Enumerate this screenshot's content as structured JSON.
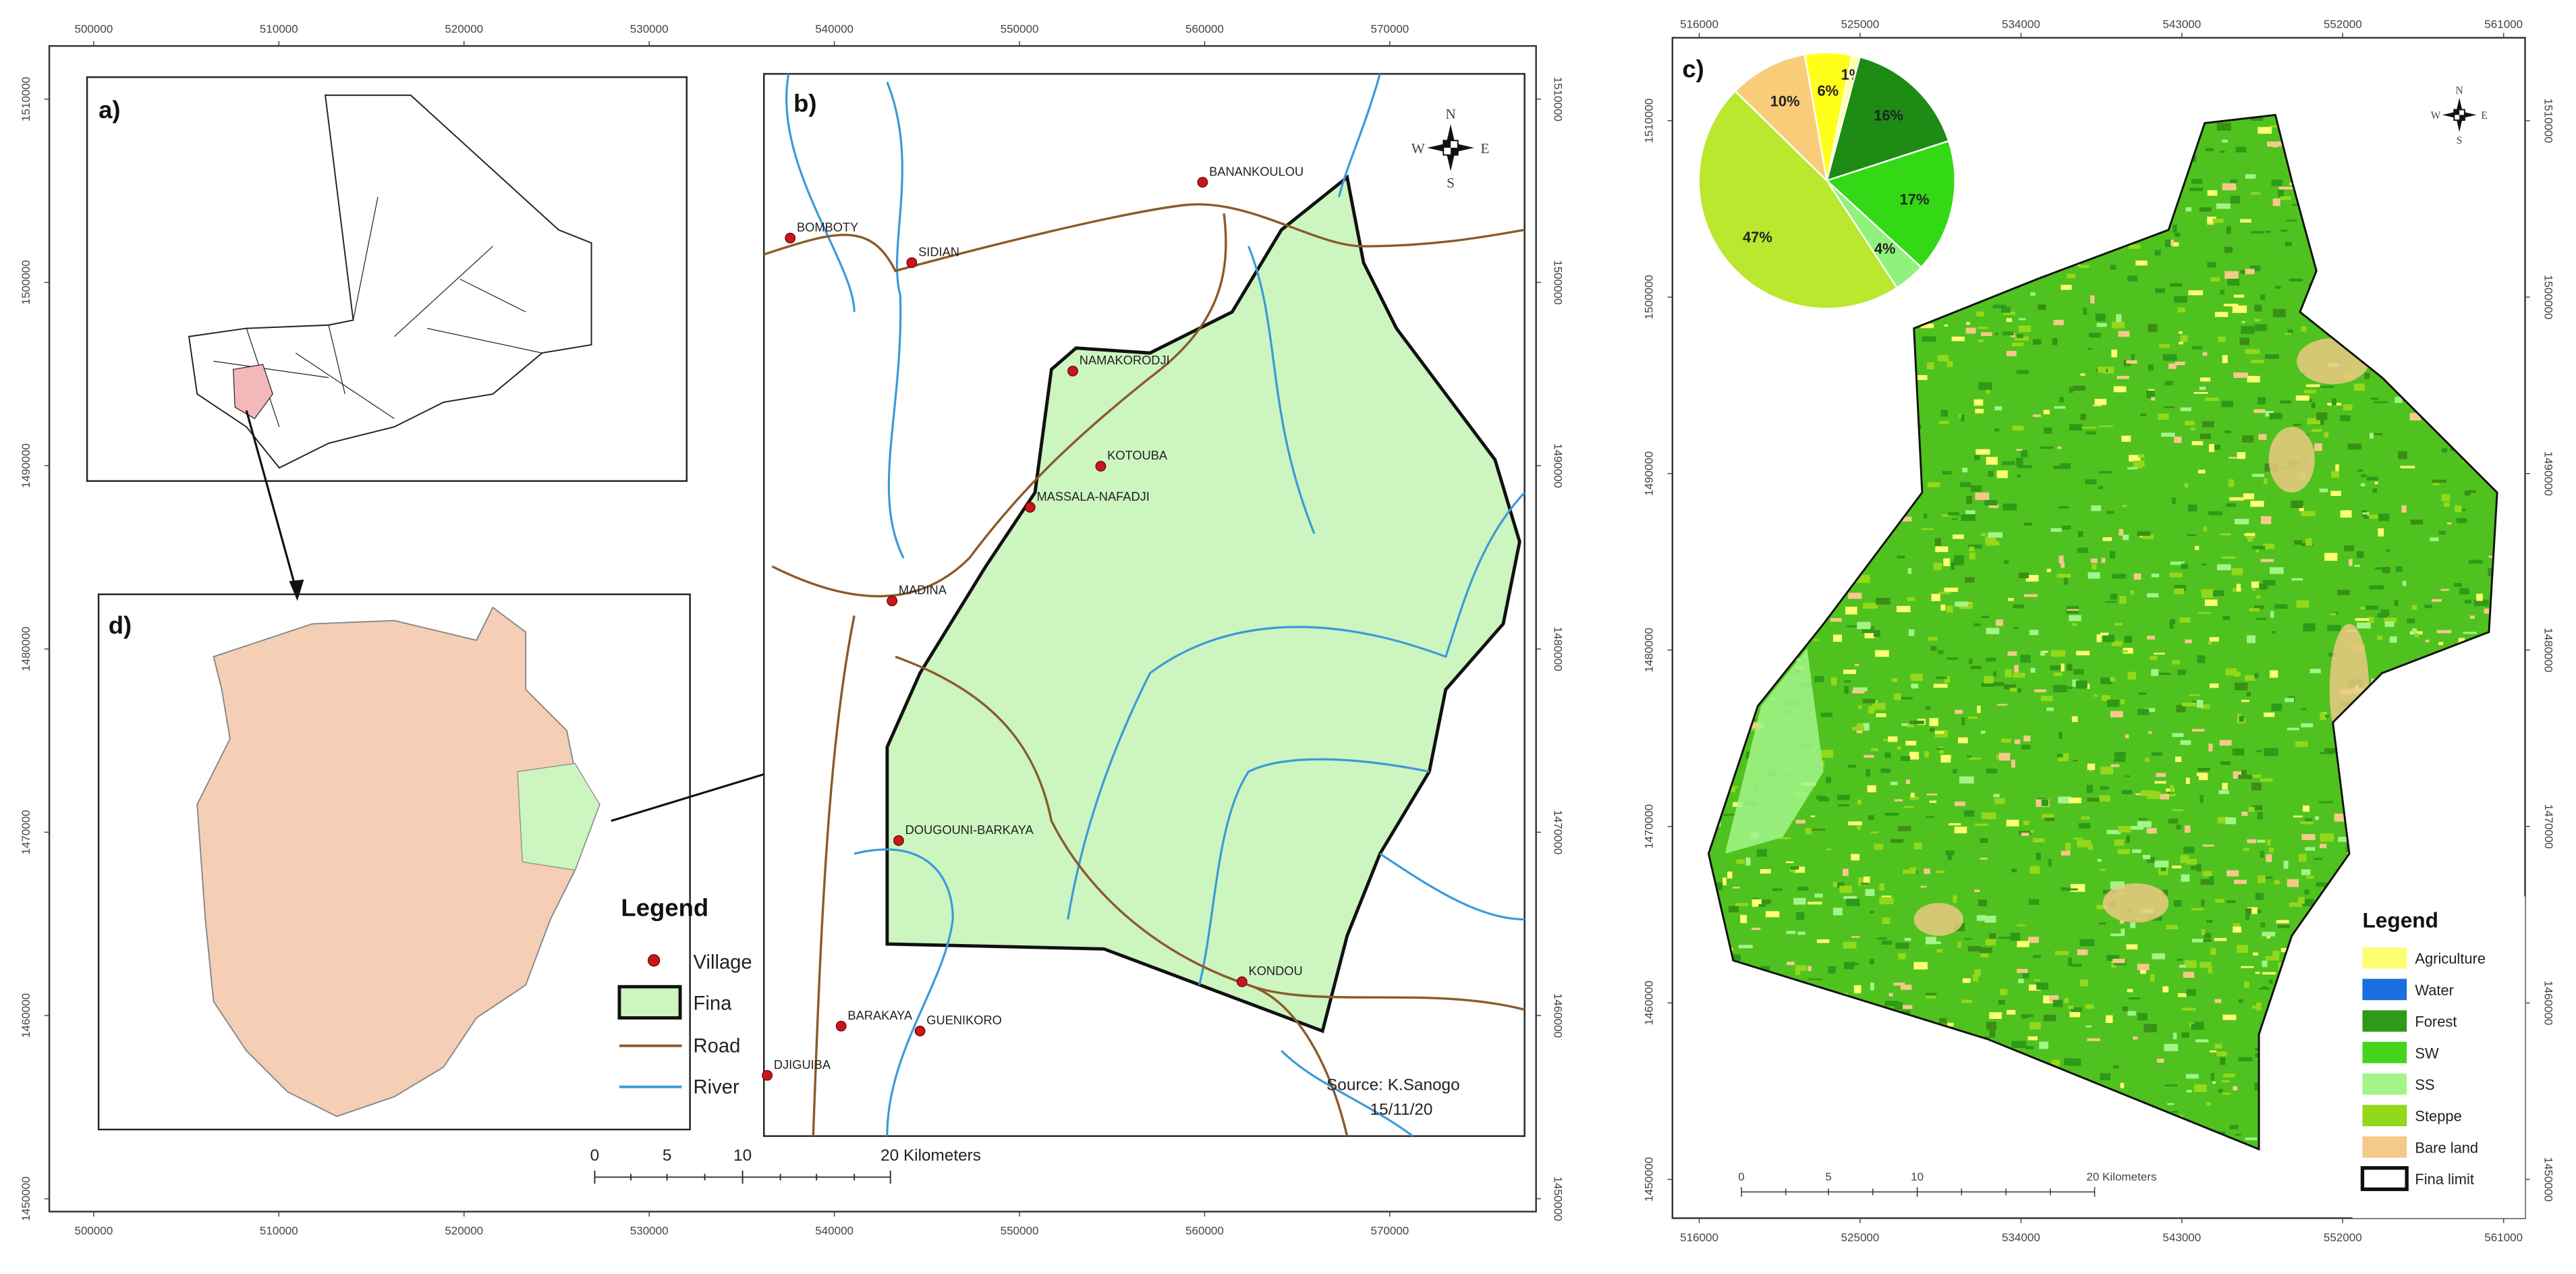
{
  "panels": {
    "a": "a)",
    "b": "b)",
    "c": "c)",
    "d": "d)"
  },
  "left_map": {
    "xlim": [
      497600,
      577900
    ],
    "ylim": [
      1449300,
      1512900
    ],
    "xticks": [
      500000,
      510000,
      520000,
      530000,
      540000,
      550000,
      560000,
      570000
    ],
    "yticks": [
      1510000,
      1500000,
      1490000,
      1480000,
      1470000,
      1460000,
      1450000
    ]
  },
  "villages": [
    "BOMBOTY",
    "SIDIAN",
    "BANANKOULOU",
    "NAMAKORODJI",
    "KOTOUBA",
    "MASSALA-NAFADJI",
    "MADINA",
    "DOUGOUNI-BARKAYA",
    "KONDOU",
    "BARAKAYA",
    "GUENIKORO",
    "DJIGUIBA"
  ],
  "legend_left": {
    "title": "Legend",
    "items": [
      "Village",
      "Fina",
      "Road",
      "River"
    ]
  },
  "scale_left": [
    "0",
    "5",
    "10",
    "20 Kilometers"
  ],
  "source": [
    "Source: K.Sanogo",
    "15/11/20"
  ],
  "compass": {
    "n": "N",
    "s": "S",
    "e": "E",
    "w": "W"
  },
  "right_map": {
    "xlim": [
      514500,
      562200
    ],
    "ylim": [
      1447800,
      1514700
    ],
    "xticks": [
      516000,
      525000,
      534000,
      543000,
      552000,
      561000
    ],
    "yticks": [
      1510000,
      1500000,
      1490000,
      1480000,
      1470000,
      1460000,
      1450000
    ]
  },
  "pie": {
    "type": "pie",
    "values": [
      6,
      1,
      16,
      17,
      4,
      47,
      10
    ],
    "value_labels": [
      "6%",
      "1%",
      "16%",
      "17%",
      "4%",
      "47%",
      "10%"
    ],
    "colors": [
      "#ffff1a",
      "#ffffa8",
      "#1e8c14",
      "#33d914",
      "#8ff27a",
      "#b9e82e",
      "#f9cc7a"
    ]
  },
  "legend_right": {
    "title": "Legend",
    "items": [
      {
        "name": "Agriculture",
        "color": "#ffff73"
      },
      {
        "name": "Water",
        "color": "#1a6fe0"
      },
      {
        "name": "Forest",
        "color": "#2e9a18"
      },
      {
        "name": "SW",
        "color": "#45d41e"
      },
      {
        "name": "SS",
        "color": "#a3f58a"
      },
      {
        "name": "Steppe",
        "color": "#93d81a"
      },
      {
        "name": "Bare land",
        "color": "#f5c98a"
      },
      {
        "name": "Fina limit",
        "color": "#ffffff"
      }
    ]
  },
  "scale_right": [
    "0",
    "5",
    "10",
    "20 Kilometers"
  ]
}
